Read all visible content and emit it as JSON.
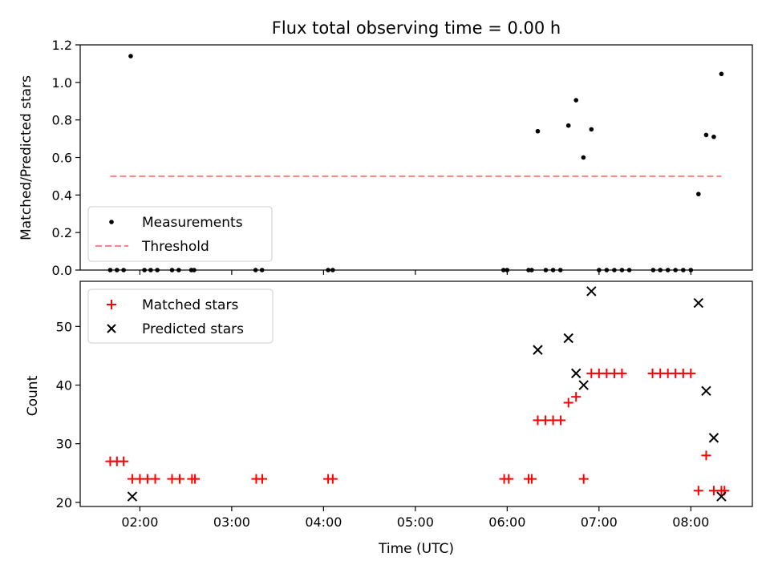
{
  "chart_data": [
    {
      "type": "scatter",
      "title": "Flux total observing time = 0.00 h",
      "ylabel": "Matched/Predicted stars",
      "xlabel": "",
      "ylim": [
        0,
        1.2
      ],
      "yticks": [
        0.0,
        0.2,
        0.4,
        0.6,
        0.8,
        1.0,
        1.2
      ],
      "yticklabels": [
        "0.0",
        "0.2",
        "0.4",
        "0.6",
        "0.8",
        "1.0",
        "1.2"
      ],
      "xlim_hours": [
        1.35,
        8.67
      ],
      "legend_position": "lower-left",
      "series": [
        {
          "name": "Measurements",
          "marker": "dot",
          "color": "#000000",
          "x": [
            1.677,
            1.75,
            1.823,
            1.9,
            2.05,
            2.117,
            2.19,
            2.35,
            2.423,
            2.56,
            2.59,
            3.26,
            3.33,
            4.05,
            4.1,
            5.96,
            6.0,
            6.233,
            6.267,
            6.42,
            6.5,
            6.58,
            6.667,
            6.75,
            6.83,
            6.917,
            7.0,
            7.083,
            7.167,
            7.25,
            7.33,
            7.59,
            7.667,
            7.75,
            7.833,
            7.917,
            8.0,
            8.083,
            8.167,
            8.25,
            8.333
          ],
          "y": [
            0,
            0,
            0,
            1.14,
            0,
            0,
            0,
            0,
            0,
            0,
            0,
            0,
            0,
            0,
            0,
            0,
            0,
            0,
            0,
            0,
            0,
            0,
            0.77,
            0.905,
            0.6,
            0.75,
            0,
            0,
            0,
            0,
            0,
            0,
            0,
            0,
            0,
            0,
            0,
            0.405,
            0.72,
            0.71,
            1.045
          ],
          "extra": {
            "x": [
              6.333
            ],
            "y": [
              0.74
            ]
          }
        },
        {
          "name": "Threshold",
          "line": "dashed",
          "color": "#ff8080",
          "x": [
            1.677,
            8.333
          ],
          "y": [
            0.5,
            0.5
          ]
        }
      ]
    },
    {
      "type": "scatter",
      "title": "",
      "ylabel": "Count",
      "xlabel": "Time (UTC)",
      "ylim": [
        19.3,
        57.7
      ],
      "yticks": [
        20,
        30,
        40,
        50
      ],
      "yticklabels": [
        "20",
        "30",
        "40",
        "50"
      ],
      "xlim_hours": [
        1.35,
        8.67
      ],
      "xticks_hours": [
        2,
        3,
        4,
        5,
        6,
        7,
        8
      ],
      "xticklabels": [
        "02:00",
        "03:00",
        "04:00",
        "05:00",
        "06:00",
        "07:00",
        "08:00"
      ],
      "legend_position": "upper-left",
      "series": [
        {
          "name": "Matched stars",
          "marker": "plus",
          "color": "#ff0000",
          "x": [
            1.677,
            1.75,
            1.823,
            1.917,
            2.0,
            2.083,
            2.167,
            2.35,
            2.433,
            2.567,
            2.6,
            3.267,
            3.333,
            4.05,
            4.1,
            5.967,
            6.017,
            6.233,
            6.267,
            6.333,
            6.417,
            6.5,
            6.583,
            6.667,
            6.75,
            6.833,
            6.917,
            7.0,
            7.083,
            7.167,
            7.25,
            7.583,
            7.667,
            7.75,
            7.833,
            7.917,
            8.0,
            8.083,
            8.167,
            8.25,
            8.333,
            8.367
          ],
          "y": [
            27,
            27,
            27,
            24,
            24,
            24,
            24,
            24,
            24,
            24,
            24,
            24,
            24,
            24,
            24,
            24,
            24,
            24,
            24,
            34,
            34,
            34,
            34,
            37,
            38,
            24,
            42,
            42,
            42,
            42,
            42,
            42,
            42,
            42,
            42,
            42,
            42,
            22,
            28,
            22,
            22,
            22
          ]
        },
        {
          "name": "Predicted stars",
          "marker": "x",
          "color": "#000000",
          "x": [
            1.917,
            6.333,
            6.667,
            6.75,
            6.833,
            6.917,
            8.083,
            8.167,
            8.25,
            8.333
          ],
          "y": [
            21,
            46,
            48,
            42,
            40,
            56,
            54,
            39,
            31,
            21
          ]
        }
      ]
    }
  ]
}
